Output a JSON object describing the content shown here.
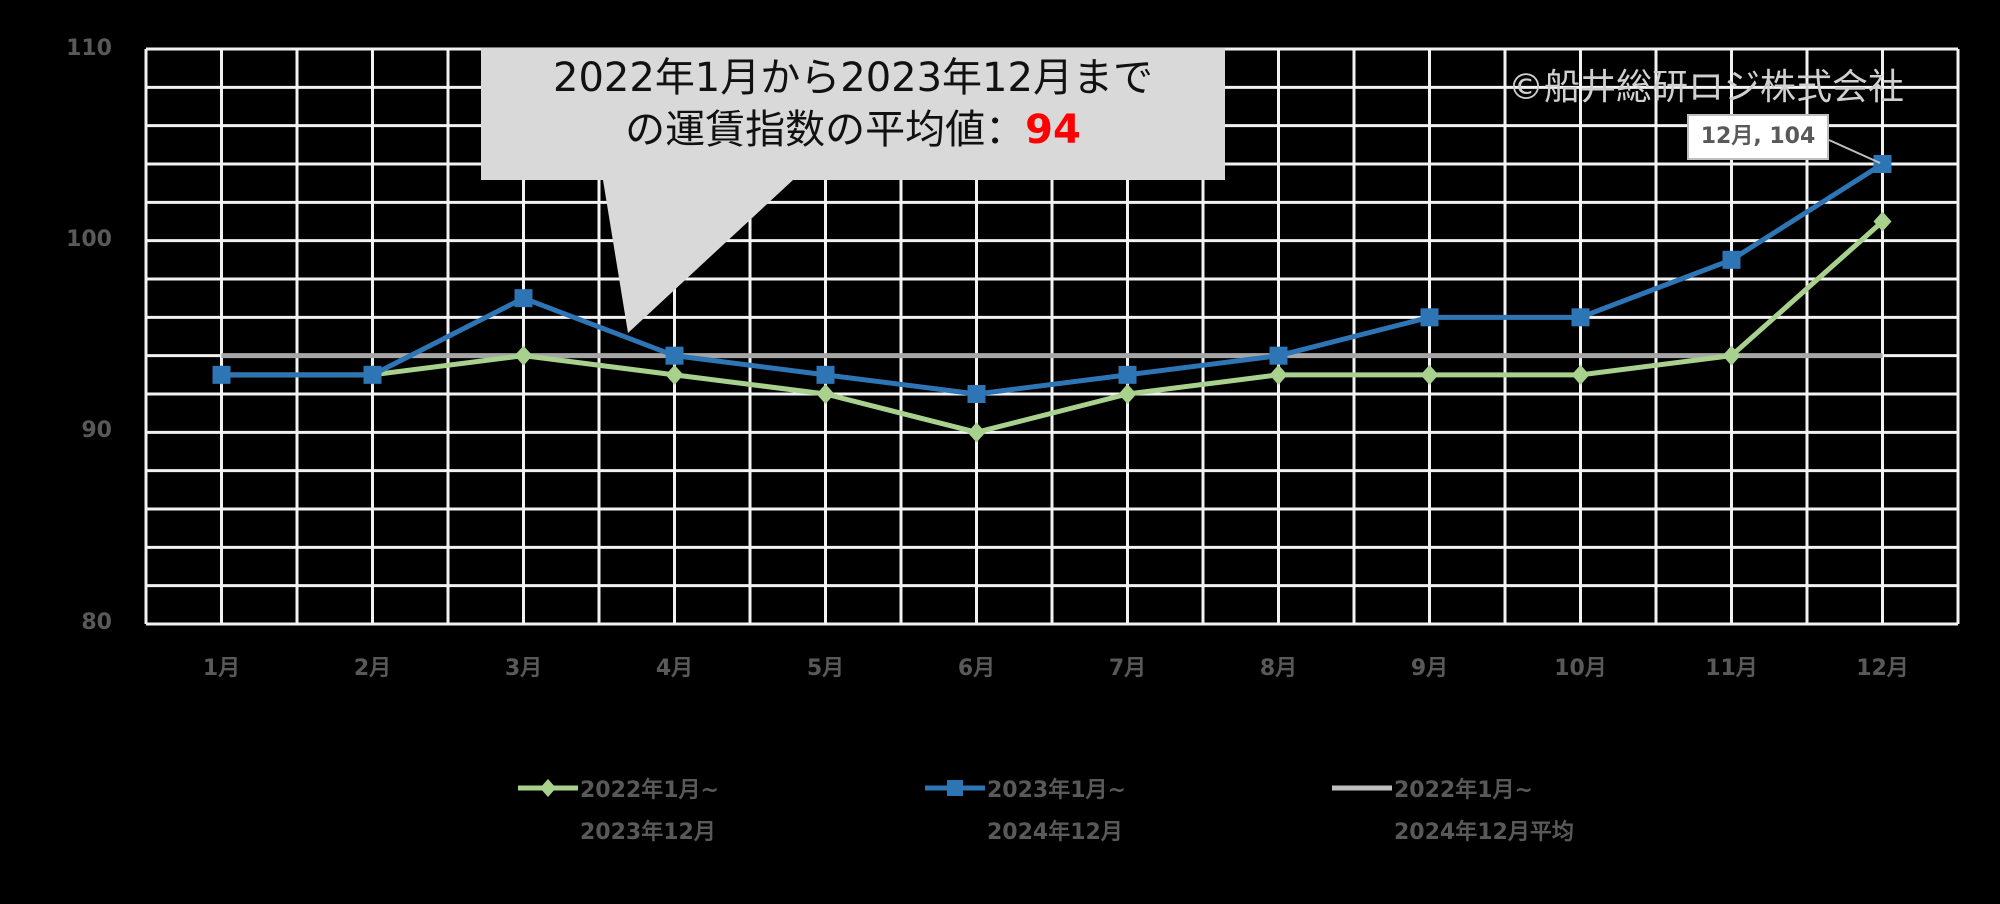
{
  "chart_data": {
    "type": "line",
    "title": "",
    "xlabel": "",
    "ylabel": "",
    "categories": [
      "1月",
      "2月",
      "3月",
      "4月",
      "5月",
      "6月",
      "7月",
      "8月",
      "9月",
      "10月",
      "11月",
      "12月"
    ],
    "series": [
      {
        "name": "2022年1月~2023年12月",
        "color": "#a9d18e",
        "marker": "diamond",
        "values": [
          93,
          93,
          94,
          93,
          92,
          90,
          92,
          93,
          93,
          93,
          94,
          101
        ]
      },
      {
        "name": "2023年1月~2024年12月",
        "color": "#2e75b6",
        "marker": "square",
        "values": [
          93,
          93,
          97,
          94,
          93,
          92,
          93,
          94,
          96,
          96,
          99,
          104
        ]
      },
      {
        "name": "2022年1月~2024年12月平均",
        "color": "#a6a6a6",
        "marker": "none",
        "values": [
          94,
          94,
          94,
          94,
          94,
          94,
          94,
          94,
          94,
          94,
          94,
          94
        ]
      }
    ],
    "ylim": [
      80,
      110
    ],
    "yticks": [
      "110",
      "100",
      "90",
      "80"
    ],
    "grid": true,
    "legend_position": "bottom",
    "annotations": [
      {
        "type": "callout",
        "text_line1": "2022年1月から2023年12月まで",
        "text_line2": "の運賃指数の平均値：",
        "value": "94"
      },
      {
        "type": "data_label",
        "text": "12月, 104"
      },
      {
        "type": "watermark",
        "text": "©船井総研ロジ株式会社"
      }
    ]
  },
  "callout": {
    "line1": "2022年1月から2023年12月まで",
    "line2": "の運賃指数の平均値：",
    "value": "94"
  },
  "data_label": "12月, 104",
  "copyright": "©船井総研ロジ株式会社",
  "yticks": {
    "t110": "110",
    "t100": "100",
    "t90": "90",
    "t80": "80"
  },
  "legend": [
    {
      "line1": "2022年1月~",
      "line2": "2023年12月"
    },
    {
      "line1": "2023年1月~",
      "line2": "2024年12月"
    },
    {
      "line1": "2022年1月~",
      "line2": "2024年12月平均"
    }
  ]
}
